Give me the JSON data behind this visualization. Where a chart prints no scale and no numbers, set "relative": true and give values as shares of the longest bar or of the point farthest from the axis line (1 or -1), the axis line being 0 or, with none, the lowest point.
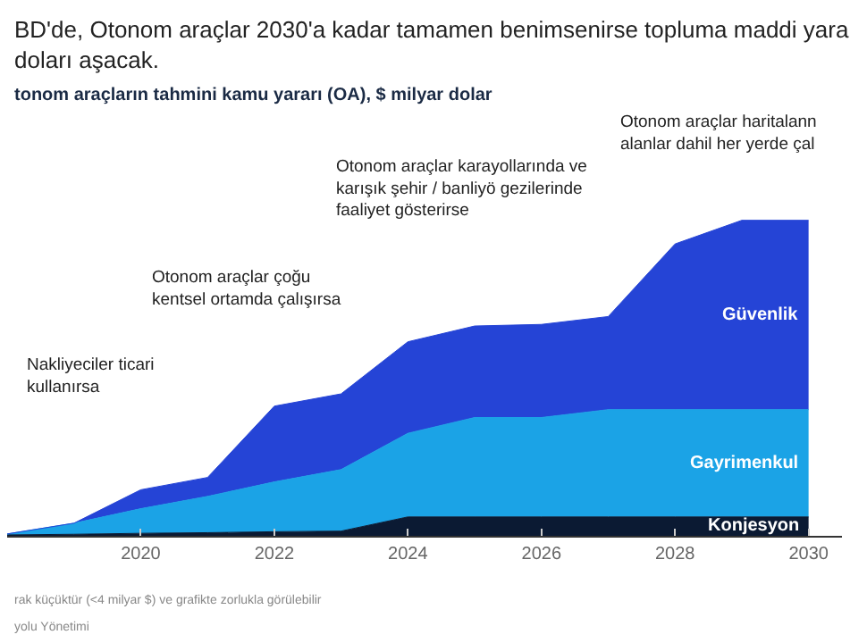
{
  "chart_data": {
    "type": "area",
    "stacked": true,
    "relative": true,
    "title": "BD'de, Otonom araçlar 2030'a kadar tamamen benimsenirse topluma maddi yara\ndoları aşacak.",
    "subtitle": "tonom araçların tahmini kamu yararı (OA), $ milyar dolar",
    "x": [
      2018,
      2019,
      2020,
      2021,
      2022,
      2023,
      2024,
      2025,
      2026,
      2027,
      2028,
      2029,
      2030
    ],
    "xlim": [
      2018,
      2030.5
    ],
    "xticks": [
      2020,
      2022,
      2024,
      2026,
      2028,
      2030
    ],
    "series": [
      {
        "name": "Konjesyon",
        "color": "#0b1a33",
        "values": [
          0.003,
          0.005,
          0.008,
          0.01,
          0.013,
          0.015,
          0.06,
          0.06,
          0.06,
          0.06,
          0.06,
          0.06,
          0.06
        ]
      },
      {
        "name": "Gayrimenkul",
        "color": "#1ba3e6",
        "values": [
          0.003,
          0.035,
          0.078,
          0.115,
          0.158,
          0.195,
          0.265,
          0.315,
          0.315,
          0.34,
          0.34,
          0.34,
          0.34
        ]
      },
      {
        "name": "Güvenlik",
        "color": "#2544d6",
        "values": [
          0,
          0,
          0.06,
          0.06,
          0.24,
          0.24,
          0.29,
          0.29,
          0.295,
          0.295,
          0.525,
          0.6,
          0.6
        ]
      }
    ],
    "annotations": [
      "Nakliyeciler ticari\nkullanırsa",
      "Otonom araçlar çoğu\nkentsel ortamda çalışırsa",
      "Otonom araçlar karayollarında ve\nkarışık şehir / banliyö gezilerinde\nfaaliyet gösterirse",
      "Otonom araçlar haritalann\nalanlar dahil her yerde çal",
      "rak küçüktür (<4 milyar $) ve grafikte zorlukla görülebilir",
      "yolu Yönetimi"
    ],
    "legend": false,
    "grid": false
  }
}
